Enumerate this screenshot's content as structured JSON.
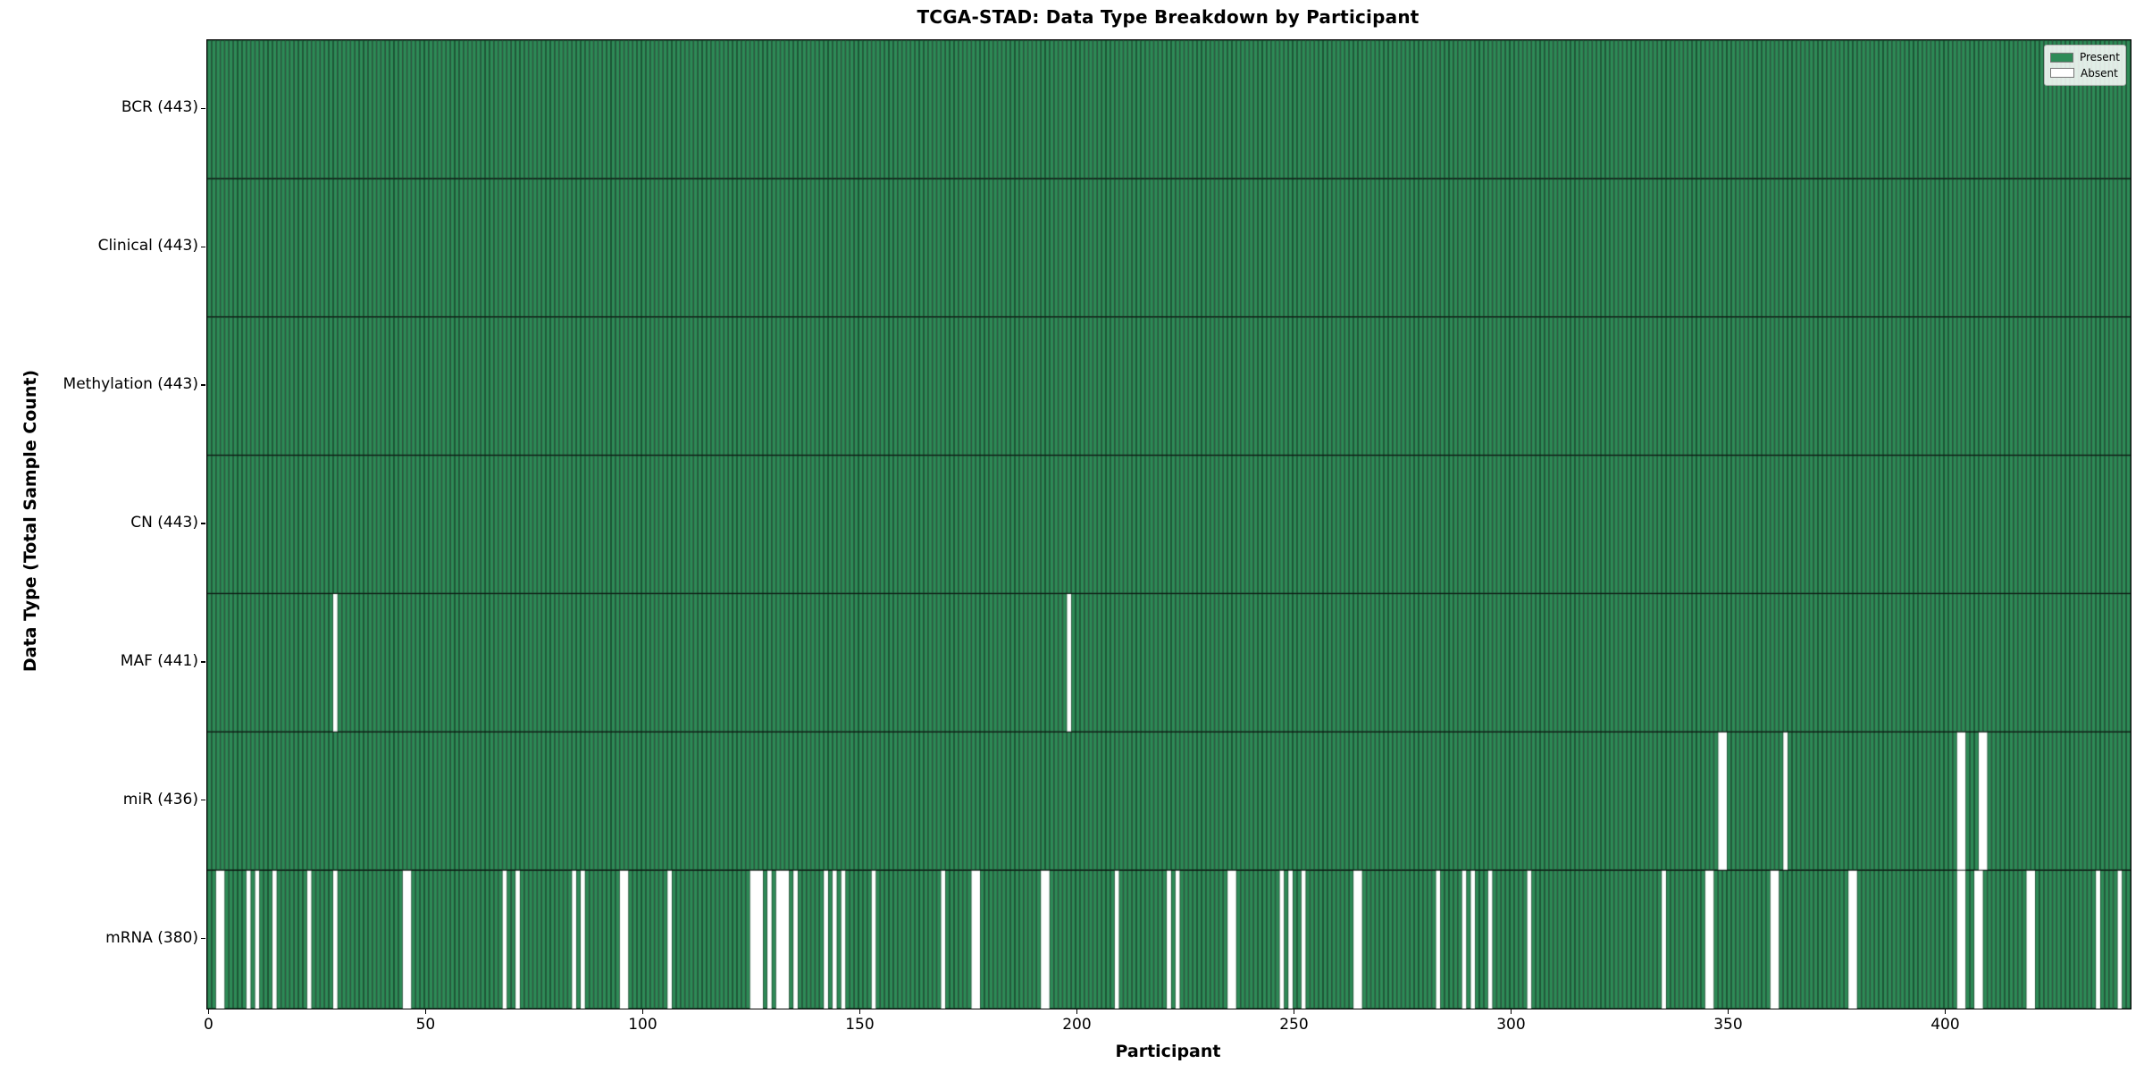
{
  "title": "TCGA-STAD: Data Type Breakdown by Participant",
  "axes": {
    "xlabel": "Participant",
    "ylabel": "Data Type (Total Sample Count)"
  },
  "legend": {
    "items": [
      {
        "label": "Present",
        "color": "#2e8b57"
      },
      {
        "label": "Absent",
        "color": "#ffffff"
      }
    ]
  },
  "chart_data": {
    "type": "heatmap",
    "title": "TCGA-STAD: Data Type Breakdown by Participant",
    "xlabel": "Participant",
    "ylabel": "Data Type (Total Sample Count)",
    "legend_entries": [
      "Present",
      "Absent"
    ],
    "legend_position": "upper right",
    "n_participants": 443,
    "x_ticks": [
      0,
      50,
      100,
      150,
      200,
      250,
      300,
      350,
      400
    ],
    "x_range": [
      0,
      442
    ],
    "present_color": "#2e8b57",
    "absent_color": "#ffffff",
    "bar_edge_color": "#000000",
    "grid": false,
    "rows": [
      {
        "label": "BCR (443)",
        "data_type": "BCR",
        "present_count": 443,
        "absent_participants": []
      },
      {
        "label": "Clinical (443)",
        "data_type": "Clinical",
        "present_count": 443,
        "absent_participants": []
      },
      {
        "label": "Methylation (443)",
        "data_type": "Methylation",
        "present_count": 443,
        "absent_participants": []
      },
      {
        "label": "CN (443)",
        "data_type": "CN",
        "present_count": 443,
        "absent_participants": []
      },
      {
        "label": "MAF (441)",
        "data_type": "MAF",
        "present_count": 441,
        "absent_participants": [
          29,
          198
        ]
      },
      {
        "label": "miR (436)",
        "data_type": "miR",
        "present_count": 436,
        "absent_participants": [
          348,
          349,
          363,
          403,
          404,
          408,
          409
        ]
      },
      {
        "label": "mRNA (380)",
        "data_type": "mRNA",
        "present_count": 380,
        "absent_participants": [
          2,
          3,
          9,
          11,
          15,
          23,
          29,
          45,
          46,
          68,
          71,
          84,
          86,
          95,
          96,
          106,
          125,
          126,
          127,
          129,
          131,
          132,
          133,
          135,
          142,
          144,
          146,
          153,
          169,
          176,
          177,
          192,
          193,
          209,
          221,
          223,
          235,
          236,
          247,
          249,
          252,
          264,
          265,
          283,
          289,
          291,
          295,
          304,
          335,
          345,
          346,
          360,
          361,
          378,
          379,
          403,
          404,
          407,
          408,
          419,
          420,
          435,
          440
        ]
      }
    ]
  }
}
